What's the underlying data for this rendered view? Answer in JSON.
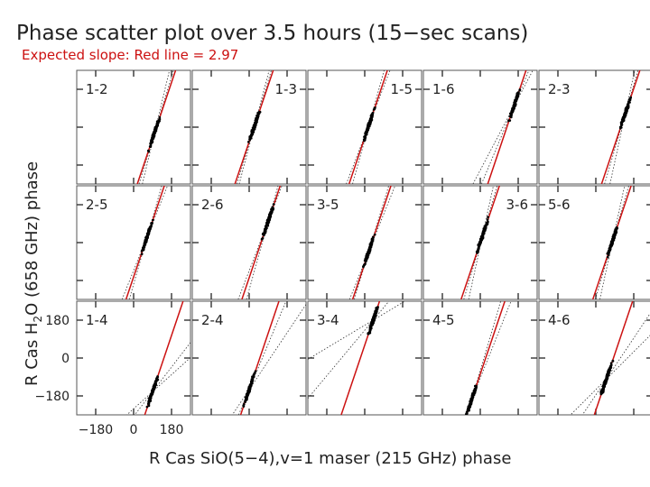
{
  "title": "Phase scatter plot over 3.5 hours (15−sec scans)",
  "subtitle": "Expected slope:  Red line = 2.97",
  "colors": {
    "text": "#222222",
    "accent": "#cc1111",
    "points": "#000000",
    "fit": "#333333"
  },
  "chart_data": {
    "type": "scatter",
    "layout": "small multiples, 3 rows x 5 columns",
    "xlabel": "R Cas SiO(5−4),v=1 maser (215 GHz) phase",
    "ylabel_prefix": "R Cas H",
    "ylabel_sub": "2",
    "ylabel_suffix": "O (658 GHz) phase",
    "xlim": [
      -270,
      270
    ],
    "ylim": [
      -270,
      270
    ],
    "xticks": [
      -180,
      0,
      180
    ],
    "yticks": [
      -180,
      0,
      180
    ],
    "xtick_labels": [
      "−180",
      "0",
      "180"
    ],
    "ytick_labels": [
      "−180",
      "0",
      "180"
    ],
    "expected_slope": 2.97,
    "panels": [
      {
        "label": "1-2",
        "label_pos": "left",
        "cx": 100,
        "cy": -25,
        "fit_slopes": [
          3.3,
          4.2
        ]
      },
      {
        "label": "1-3",
        "label_pos": "right",
        "cx": 25,
        "cy": 5,
        "fit_slopes": [
          3.3,
          3.8
        ]
      },
      {
        "label": "1-5",
        "label_pos": "right",
        "cx": 20,
        "cy": 10,
        "fit_slopes": [
          2.6,
          3.6
        ]
      },
      {
        "label": "1-6",
        "label_pos": "left",
        "cx": 160,
        "cy": 100,
        "fit_slopes": [
          1.9,
          2.4
        ]
      },
      {
        "label": "2-3",
        "label_pos": "left",
        "cx": 140,
        "cy": 65,
        "fit_slopes": [
          3.4,
          4.6
        ]
      },
      {
        "label": "2-5",
        "label_pos": "left",
        "cx": 65,
        "cy": 30,
        "fit_slopes": [
          2.5,
          3.5
        ]
      },
      {
        "label": "2-6",
        "label_pos": "left",
        "cx": 90,
        "cy": 100,
        "fit_slopes": [
          2.6,
          3.6
        ]
      },
      {
        "label": "3-5",
        "label_pos": "left",
        "cx": 20,
        "cy": -40,
        "fit_slopes": [
          2.5,
          3.3
        ]
      },
      {
        "label": "3-6",
        "label_pos": "right",
        "cx": 10,
        "cy": 30,
        "fit_slopes": [
          3.4,
          4.6
        ]
      },
      {
        "label": "5-6",
        "label_pos": "left",
        "cx": 80,
        "cy": 10,
        "fit_slopes": [
          3.4,
          4.6
        ]
      },
      {
        "label": "1-4",
        "label_pos": "left",
        "cx": 90,
        "cy": -160,
        "fit_slopes": [
          0.9,
          1.3
        ]
      },
      {
        "label": "2-4",
        "label_pos": "left",
        "cx": 0,
        "cy": -150,
        "fit_slopes": [
          1.5,
          2.4
        ]
      },
      {
        "label": "3-4",
        "label_pos": "left",
        "cx": 40,
        "cy": 180,
        "fit_slopes": [
          0.6,
          1.2
        ]
      },
      {
        "label": "4-5",
        "label_pos": "left",
        "cx": -40,
        "cy": -195,
        "fit_slopes": [
          2.5,
          3.4
        ]
      },
      {
        "label": "4-6",
        "label_pos": "left",
        "cx": 50,
        "cy": -100,
        "fit_slopes": [
          1.0,
          1.5
        ]
      }
    ]
  }
}
